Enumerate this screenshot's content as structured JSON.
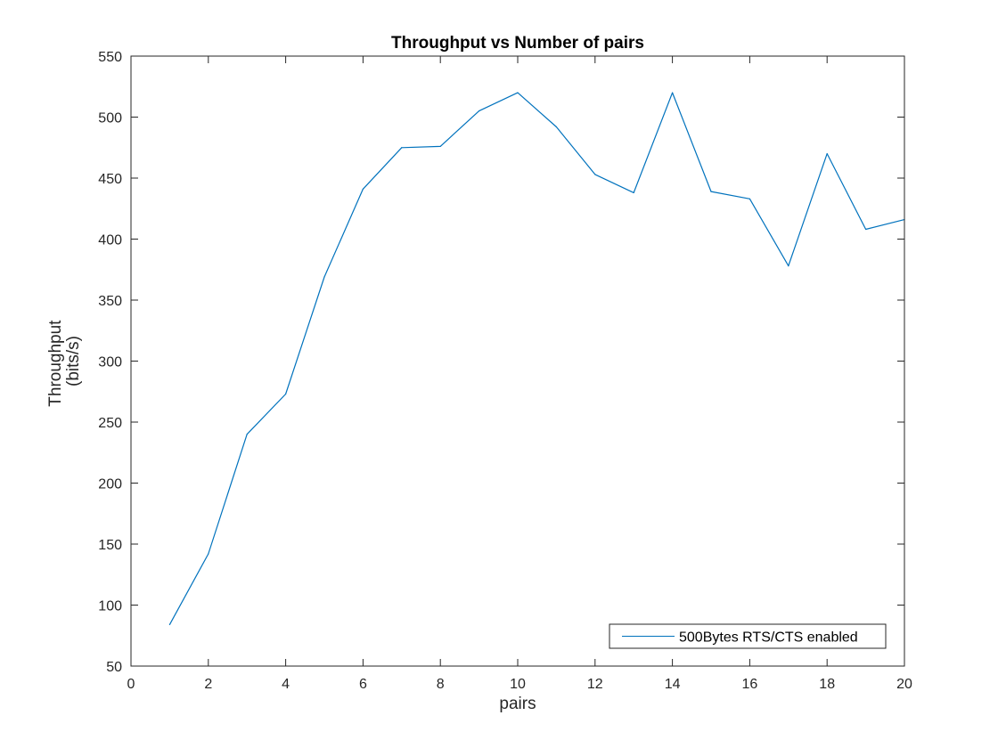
{
  "chart_data": {
    "type": "line",
    "title": "Throughput vs Number of pairs",
    "xlabel": "pairs",
    "ylabel_lines": [
      "Throughput",
      "(bits/s)"
    ],
    "xlim": [
      0,
      20
    ],
    "ylim": [
      50,
      550
    ],
    "xticks": [
      0,
      2,
      4,
      6,
      8,
      10,
      12,
      14,
      16,
      18,
      20
    ],
    "yticks": [
      50,
      100,
      150,
      200,
      250,
      300,
      350,
      400,
      450,
      500,
      550
    ],
    "grid": false,
    "legend_position": "bottom-right",
    "series": [
      {
        "name": "500Bytes RTS/CTS enabled",
        "color": "#0072BD",
        "x": [
          1,
          2,
          3,
          4,
          5,
          6,
          7,
          8,
          9,
          10,
          11,
          12,
          13,
          14,
          15,
          16,
          17,
          18,
          19,
          20
        ],
        "y": [
          84,
          142,
          240,
          273,
          369,
          441,
          475,
          476,
          505,
          520,
          492,
          453,
          438,
          520,
          439,
          433,
          378,
          470,
          408,
          416
        ]
      }
    ]
  }
}
